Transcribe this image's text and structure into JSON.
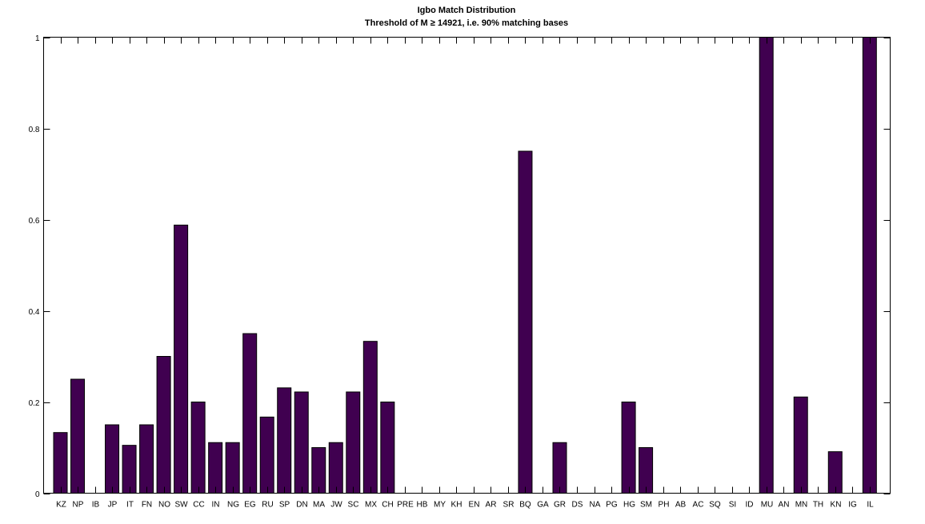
{
  "chart_data": {
    "type": "bar",
    "title": "Igbo Match Distribution",
    "subtitle": "Threshold of M ≥ 14921, i.e. 90% matching bases",
    "xlabel": "",
    "ylabel": "",
    "ylim": [
      0,
      1
    ],
    "yticks": [
      "0",
      "0.2",
      "0.4",
      "0.6",
      "0.8",
      "1"
    ],
    "grid": false,
    "bar_color": "#400050",
    "categories": [
      "KZ",
      "NP",
      "IB",
      "JP",
      "IT",
      "FN",
      "NO",
      "SW",
      "CC",
      "IN",
      "NG",
      "EG",
      "RU",
      "SP",
      "DN",
      "MA",
      "JW",
      "SC",
      "MX",
      "CH",
      "PRE",
      "HB",
      "MY",
      "KH",
      "EN",
      "AR",
      "SR",
      "BQ",
      "GA",
      "GR",
      "DS",
      "NA",
      "PG",
      "HG",
      "SM",
      "PH",
      "AB",
      "AC",
      "SQ",
      "SI",
      "ID",
      "MU",
      "AN",
      "MN",
      "TH",
      "KN",
      "IG",
      "IL"
    ],
    "values": [
      0.133,
      0.25,
      0,
      0.15,
      0.105,
      0.15,
      0.3,
      0.588,
      0.2,
      0.111,
      0.111,
      0.35,
      0.167,
      0.231,
      0.222,
      0.1,
      0.111,
      0.222,
      0.333,
      0.2,
      0,
      0,
      0,
      0,
      0,
      0,
      0,
      0.75,
      0,
      0.111,
      0,
      0,
      0,
      0.2,
      0.1,
      0,
      0,
      0,
      0,
      0,
      0,
      1,
      0,
      0.211,
      0,
      0.091,
      0,
      1
    ]
  }
}
